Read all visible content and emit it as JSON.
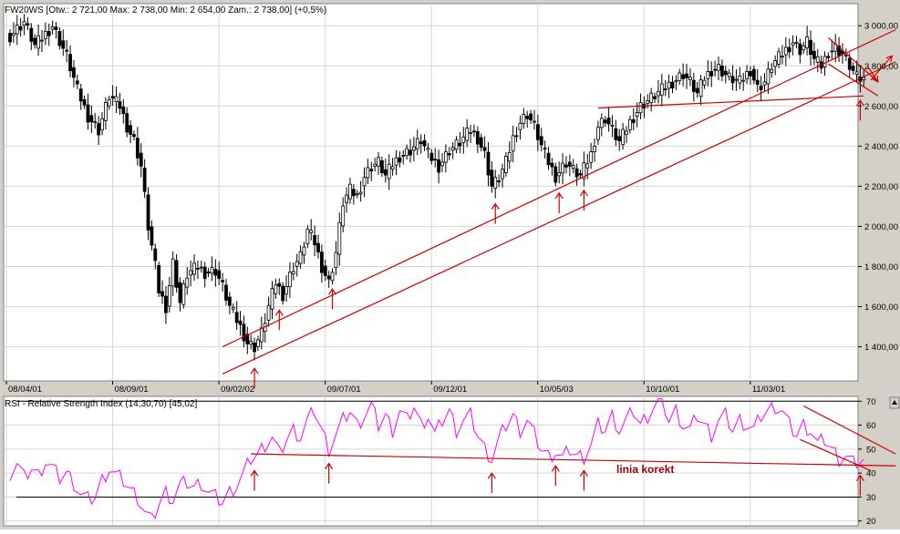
{
  "main_header": "FW20WS [Otw.: 2 721,00  Max: 2 738,00  Min: 2 654,00  Zam.: 2 738,00] (+0,5%)",
  "rsi_header": "RSI - Relative Strength Index (14,30,70) [45,02]",
  "correction_label": "linia korekt",
  "colors": {
    "background": "#ffffff",
    "frame": "#d4d0c8",
    "grid": "#d6d6d6",
    "candle": "#000000",
    "rsi_line": "#ff00ff",
    "trend_line": "#cc0000",
    "label": "#990000"
  },
  "chart_data": [
    {
      "type": "candlestick",
      "title": "FW20WS [Otw.: 2 721,00  Max: 2 738,00  Min: 2 654,00  Zam.: 2 738,00] (+0,5%)",
      "x_tick_labels": [
        "08/04/01",
        "08/09/01",
        "09/02/02",
        "09/07/01",
        "09/12/01",
        "10/05/03",
        "10/10/01",
        "11/03/01"
      ],
      "x_tick_index": [
        0,
        30,
        60,
        90,
        120,
        150,
        180,
        210
      ],
      "y_ticks": [
        1400,
        1600,
        1800,
        2000,
        2200,
        2400,
        2600,
        2800,
        3000
      ],
      "y_tick_labels": [
        "1 400,00",
        "1 600,00",
        "1 800,00",
        "2 000,00",
        "2 200,00",
        "2 400,00",
        "2 600,00",
        "2 800,00",
        "3 000,00"
      ],
      "ylim": [
        1230,
        3110
      ],
      "grid": true,
      "close_anchors": [
        [
          0,
          2950
        ],
        [
          4,
          3020
        ],
        [
          7,
          2900
        ],
        [
          12,
          3000
        ],
        [
          16,
          2850
        ],
        [
          19,
          2680
        ],
        [
          22,
          2550
        ],
        [
          25,
          2480
        ],
        [
          28,
          2650
        ],
        [
          31,
          2600
        ],
        [
          33,
          2500
        ],
        [
          35,
          2430
        ],
        [
          37,
          2300
        ],
        [
          39,
          2000
        ],
        [
          41,
          1800
        ],
        [
          42,
          1680
        ],
        [
          44,
          1600
        ],
        [
          46,
          1820
        ],
        [
          48,
          1620
        ],
        [
          50,
          1760
        ],
        [
          53,
          1800
        ],
        [
          55,
          1770
        ],
        [
          58,
          1780
        ],
        [
          60,
          1700
        ],
        [
          62,
          1600
        ],
        [
          65,
          1500
        ],
        [
          67,
          1420
        ],
        [
          69,
          1400
        ],
        [
          71,
          1470
        ],
        [
          73,
          1600
        ],
        [
          75,
          1720
        ],
        [
          77,
          1660
        ],
        [
          80,
          1800
        ],
        [
          82,
          1850
        ],
        [
          84,
          1980
        ],
        [
          86,
          1920
        ],
        [
          88,
          1800
        ],
        [
          90,
          1720
        ],
        [
          92,
          1870
        ],
        [
          94,
          2120
        ],
        [
          96,
          2180
        ],
        [
          98,
          2150
        ],
        [
          100,
          2250
        ],
        [
          102,
          2300
        ],
        [
          104,
          2320
        ],
        [
          106,
          2250
        ],
        [
          108,
          2310
        ],
        [
          110,
          2350
        ],
        [
          113,
          2380
        ],
        [
          116,
          2430
        ],
        [
          118,
          2360
        ],
        [
          121,
          2300
        ],
        [
          124,
          2380
        ],
        [
          127,
          2420
        ],
        [
          130,
          2480
        ],
        [
          132,
          2440
        ],
        [
          134,
          2360
        ],
        [
          136,
          2200
        ],
        [
          138,
          2240
        ],
        [
          140,
          2320
        ],
        [
          142,
          2440
        ],
        [
          144,
          2520
        ],
        [
          146,
          2560
        ],
        [
          148,
          2500
        ],
        [
          150,
          2400
        ],
        [
          152,
          2320
        ],
        [
          154,
          2250
        ],
        [
          157,
          2320
        ],
        [
          159,
          2280
        ],
        [
          161,
          2250
        ],
        [
          164,
          2360
        ],
        [
          166,
          2500
        ],
        [
          168,
          2540
        ],
        [
          170,
          2480
        ],
        [
          172,
          2420
        ],
        [
          175,
          2520
        ],
        [
          178,
          2600
        ],
        [
          181,
          2640
        ],
        [
          184,
          2680
        ],
        [
          187,
          2720
        ],
        [
          190,
          2760
        ],
        [
          192,
          2720
        ],
        [
          194,
          2660
        ],
        [
          196,
          2740
        ],
        [
          198,
          2780
        ],
        [
          200,
          2790
        ],
        [
          203,
          2740
        ],
        [
          206,
          2720
        ],
        [
          209,
          2780
        ],
        [
          211,
          2690
        ],
        [
          213,
          2720
        ],
        [
          215,
          2800
        ],
        [
          218,
          2860
        ],
        [
          221,
          2920
        ],
        [
          223,
          2880
        ],
        [
          225,
          2920
        ],
        [
          227,
          2830
        ],
        [
          229,
          2800
        ],
        [
          231,
          2870
        ],
        [
          233,
          2890
        ],
        [
          235,
          2860
        ],
        [
          237,
          2800
        ],
        [
          239,
          2740
        ],
        [
          241,
          2730
        ]
      ],
      "annotations": [
        {
          "type": "arrow",
          "index": 69,
          "direction": "up"
        },
        {
          "type": "arrow",
          "index": 76,
          "direction": "up"
        },
        {
          "type": "arrow",
          "index": 91,
          "direction": "up"
        },
        {
          "type": "arrow",
          "index": 137,
          "direction": "up"
        },
        {
          "type": "arrow",
          "index": 155,
          "direction": "up"
        },
        {
          "type": "arrow",
          "index": 162,
          "direction": "up"
        },
        {
          "type": "arrow",
          "index": 240,
          "direction": "up"
        },
        {
          "type": "trendline",
          "from": [
            60,
            1400
          ],
          "to": [
            250,
            2980
          ]
        },
        {
          "type": "trendline",
          "from": [
            60,
            1265
          ],
          "to": [
            250,
            2820
          ]
        },
        {
          "type": "trendline",
          "from": [
            166,
            2590
          ],
          "to": [
            241,
            2650
          ]
        },
        {
          "type": "trendline",
          "from": [
            231,
            2940
          ],
          "to": [
            245,
            2720
          ]
        },
        {
          "type": "trendline",
          "from": [
            231,
            2810
          ],
          "to": [
            245,
            2650
          ]
        },
        {
          "type": "arrow",
          "from": [
            243,
            2730
          ],
          "to": [
            249,
            2850
          ]
        },
        {
          "type": "arrow",
          "from": [
            242,
            2800
          ],
          "to": [
            245,
            2720
          ]
        }
      ]
    },
    {
      "type": "line",
      "title": "RSI - Relative Strength Index (14,30,70) [45,02]",
      "series": [
        {
          "name": "RSI - Relative Strength Index (14,30,70)",
          "last": 45.02
        }
      ],
      "y_ticks": [
        20,
        30,
        40,
        50,
        60,
        70
      ],
      "ylim": [
        18,
        72
      ],
      "levels": [
        30,
        70
      ],
      "grid": true,
      "rsi_anchors": [
        [
          0,
          40
        ],
        [
          2,
          44
        ],
        [
          4,
          38
        ],
        [
          6,
          42
        ],
        [
          8,
          39
        ],
        [
          10,
          45
        ],
        [
          12,
          42
        ],
        [
          14,
          38
        ],
        [
          16,
          40
        ],
        [
          18,
          36
        ],
        [
          20,
          31
        ],
        [
          22,
          29
        ],
        [
          24,
          30
        ],
        [
          26,
          37
        ],
        [
          28,
          42
        ],
        [
          30,
          39
        ],
        [
          32,
          37
        ],
        [
          34,
          33
        ],
        [
          36,
          30
        ],
        [
          38,
          24
        ],
        [
          40,
          20
        ],
        [
          42,
          27
        ],
        [
          44,
          32
        ],
        [
          46,
          29
        ],
        [
          48,
          35
        ],
        [
          50,
          36
        ],
        [
          52,
          34
        ],
        [
          54,
          36
        ],
        [
          56,
          32
        ],
        [
          58,
          30
        ],
        [
          60,
          28
        ],
        [
          62,
          32
        ],
        [
          64,
          35
        ],
        [
          66,
          40
        ],
        [
          68,
          46
        ],
        [
          70,
          48
        ],
        [
          72,
          52
        ],
        [
          74,
          55
        ],
        [
          76,
          48
        ],
        [
          78,
          54
        ],
        [
          80,
          58
        ],
        [
          82,
          55
        ],
        [
          84,
          62
        ],
        [
          86,
          66
        ],
        [
          88,
          58
        ],
        [
          90,
          50
        ],
        [
          92,
          56
        ],
        [
          94,
          62
        ],
        [
          96,
          66
        ],
        [
          98,
          60
        ],
        [
          100,
          64
        ],
        [
          102,
          68
        ],
        [
          104,
          60
        ],
        [
          106,
          64
        ],
        [
          108,
          58
        ],
        [
          110,
          66
        ],
        [
          112,
          62
        ],
        [
          114,
          68
        ],
        [
          116,
          60
        ],
        [
          118,
          64
        ],
        [
          120,
          56
        ],
        [
          122,
          62
        ],
        [
          124,
          66
        ],
        [
          126,
          58
        ],
        [
          128,
          62
        ],
        [
          130,
          64
        ],
        [
          132,
          56
        ],
        [
          134,
          50
        ],
        [
          136,
          46
        ],
        [
          138,
          54
        ],
        [
          140,
          60
        ],
        [
          142,
          64
        ],
        [
          144,
          58
        ],
        [
          146,
          62
        ],
        [
          148,
          56
        ],
        [
          150,
          50
        ],
        [
          152,
          47
        ],
        [
          154,
          49
        ],
        [
          156,
          46
        ],
        [
          158,
          50
        ],
        [
          160,
          47
        ],
        [
          162,
          47
        ],
        [
          164,
          52
        ],
        [
          166,
          60
        ],
        [
          168,
          58
        ],
        [
          170,
          64
        ],
        [
          172,
          58
        ],
        [
          174,
          62
        ],
        [
          176,
          66
        ],
        [
          178,
          60
        ],
        [
          180,
          64
        ],
        [
          182,
          68
        ],
        [
          184,
          71
        ],
        [
          186,
          62
        ],
        [
          188,
          66
        ],
        [
          190,
          60
        ],
        [
          192,
          58
        ],
        [
          194,
          64
        ],
        [
          196,
          60
        ],
        [
          198,
          56
        ],
        [
          200,
          62
        ],
        [
          202,
          64
        ],
        [
          204,
          58
        ],
        [
          206,
          62
        ],
        [
          208,
          60
        ],
        [
          210,
          58
        ],
        [
          212,
          64
        ],
        [
          214,
          66
        ],
        [
          216,
          68
        ],
        [
          218,
          66
        ],
        [
          220,
          60
        ],
        [
          222,
          56
        ],
        [
          224,
          60
        ],
        [
          226,
          58
        ],
        [
          228,
          52
        ],
        [
          230,
          54
        ],
        [
          232,
          50
        ],
        [
          234,
          46
        ],
        [
          236,
          47
        ],
        [
          238,
          44
        ],
        [
          240,
          45.02
        ]
      ],
      "annotations": [
        {
          "type": "arrow",
          "index": 69,
          "direction": "up"
        },
        {
          "type": "arrow",
          "index": 90,
          "direction": "up"
        },
        {
          "type": "arrow",
          "index": 136,
          "direction": "up"
        },
        {
          "type": "arrow",
          "index": 154,
          "direction": "up"
        },
        {
          "type": "arrow",
          "index": 162,
          "direction": "up"
        },
        {
          "type": "arrow",
          "index": 240,
          "direction": "up"
        },
        {
          "type": "trendline",
          "from": [
            68,
            48
          ],
          "to": [
            250,
            43
          ]
        },
        {
          "type": "trendline",
          "from": [
            224,
            68
          ],
          "to": [
            250,
            48
          ]
        },
        {
          "type": "trendline",
          "from": [
            223,
            54
          ],
          "to": [
            243,
            41
          ]
        }
      ]
    }
  ]
}
